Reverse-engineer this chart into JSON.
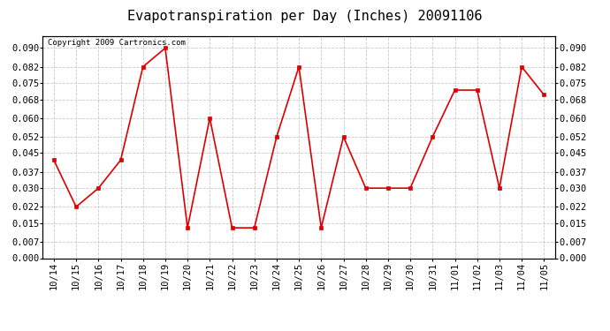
{
  "title": "Evapotranspiration per Day (Inches) 20091106",
  "copyright_text": "Copyright 2009 Cartronics.com",
  "x_labels": [
    "10/14",
    "10/15",
    "10/16",
    "10/17",
    "10/18",
    "10/19",
    "10/20",
    "10/21",
    "10/22",
    "10/23",
    "10/24",
    "10/25",
    "10/26",
    "10/27",
    "10/28",
    "10/29",
    "10/30",
    "10/31",
    "11/01",
    "11/02",
    "11/03",
    "11/04",
    "11/05"
  ],
  "y_values": [
    0.042,
    0.022,
    0.03,
    0.042,
    0.082,
    0.09,
    0.013,
    0.06,
    0.013,
    0.013,
    0.052,
    0.082,
    0.013,
    0.052,
    0.03,
    0.03,
    0.03,
    0.052,
    0.072,
    0.072,
    0.03,
    0.082,
    0.07
  ],
  "line_color": "#dd0000",
  "marker": "s",
  "marker_size": 2.5,
  "line_width": 1.2,
  "y_ticks": [
    0.0,
    0.007,
    0.015,
    0.022,
    0.03,
    0.037,
    0.045,
    0.052,
    0.06,
    0.068,
    0.075,
    0.082,
    0.09
  ],
  "ylim": [
    0.0,
    0.095
  ],
  "background_color": "#ffffff",
  "plot_bg_color": "#ffffff",
  "grid_color": "#bbbbbb",
  "title_fontsize": 11,
  "copyright_fontsize": 6.5,
  "tick_fontsize": 7.5
}
